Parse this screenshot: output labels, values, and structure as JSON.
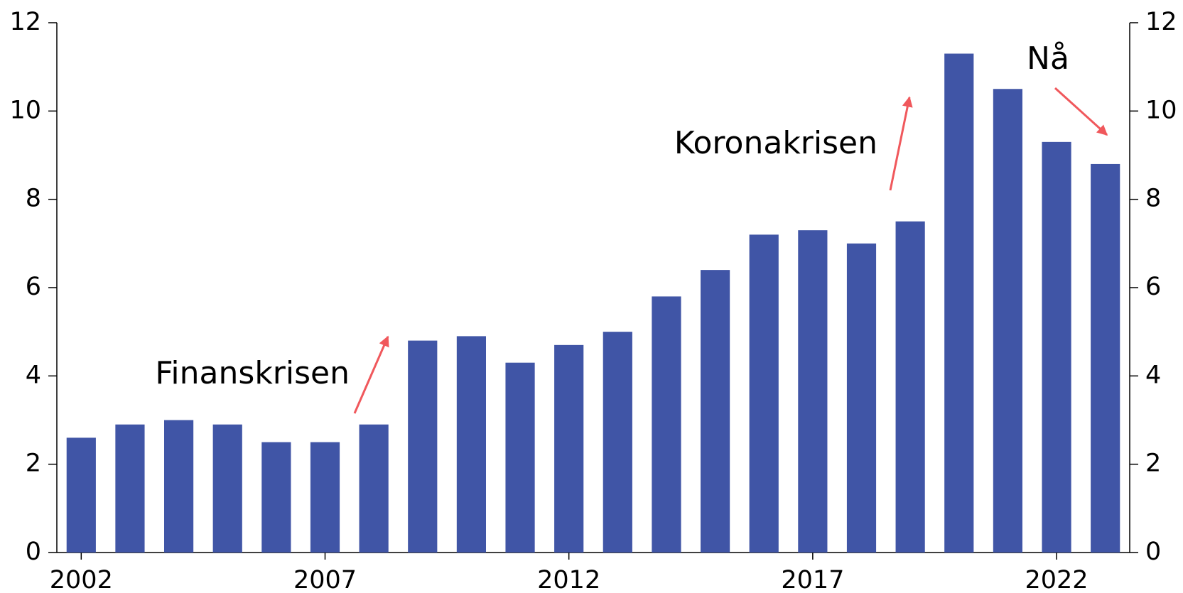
{
  "chart_data": {
    "type": "bar",
    "categories": [
      "2002",
      null,
      null,
      null,
      null,
      "2007",
      null,
      null,
      null,
      null,
      "2012",
      null,
      null,
      null,
      null,
      "2017",
      null,
      null,
      null,
      null,
      "2022",
      null
    ],
    "values": [
      2.6,
      2.9,
      3.0,
      2.9,
      2.5,
      2.5,
      2.9,
      4.8,
      4.9,
      4.3,
      4.7,
      5.0,
      5.8,
      6.4,
      7.2,
      7.3,
      7.0,
      7.5,
      11.3,
      10.5,
      9.3,
      8.8
    ],
    "color": "#4055a6",
    "ylim": [
      0,
      12
    ],
    "yticks": [
      0,
      2,
      4,
      6,
      8,
      10,
      12
    ],
    "y2lim": [
      0,
      12
    ],
    "y2ticks": [
      0,
      2,
      4,
      6,
      8,
      10,
      12
    ],
    "annotations": [
      "Finanskrisen",
      "Koronakrisen",
      "Nå"
    ],
    "grid": false
  }
}
